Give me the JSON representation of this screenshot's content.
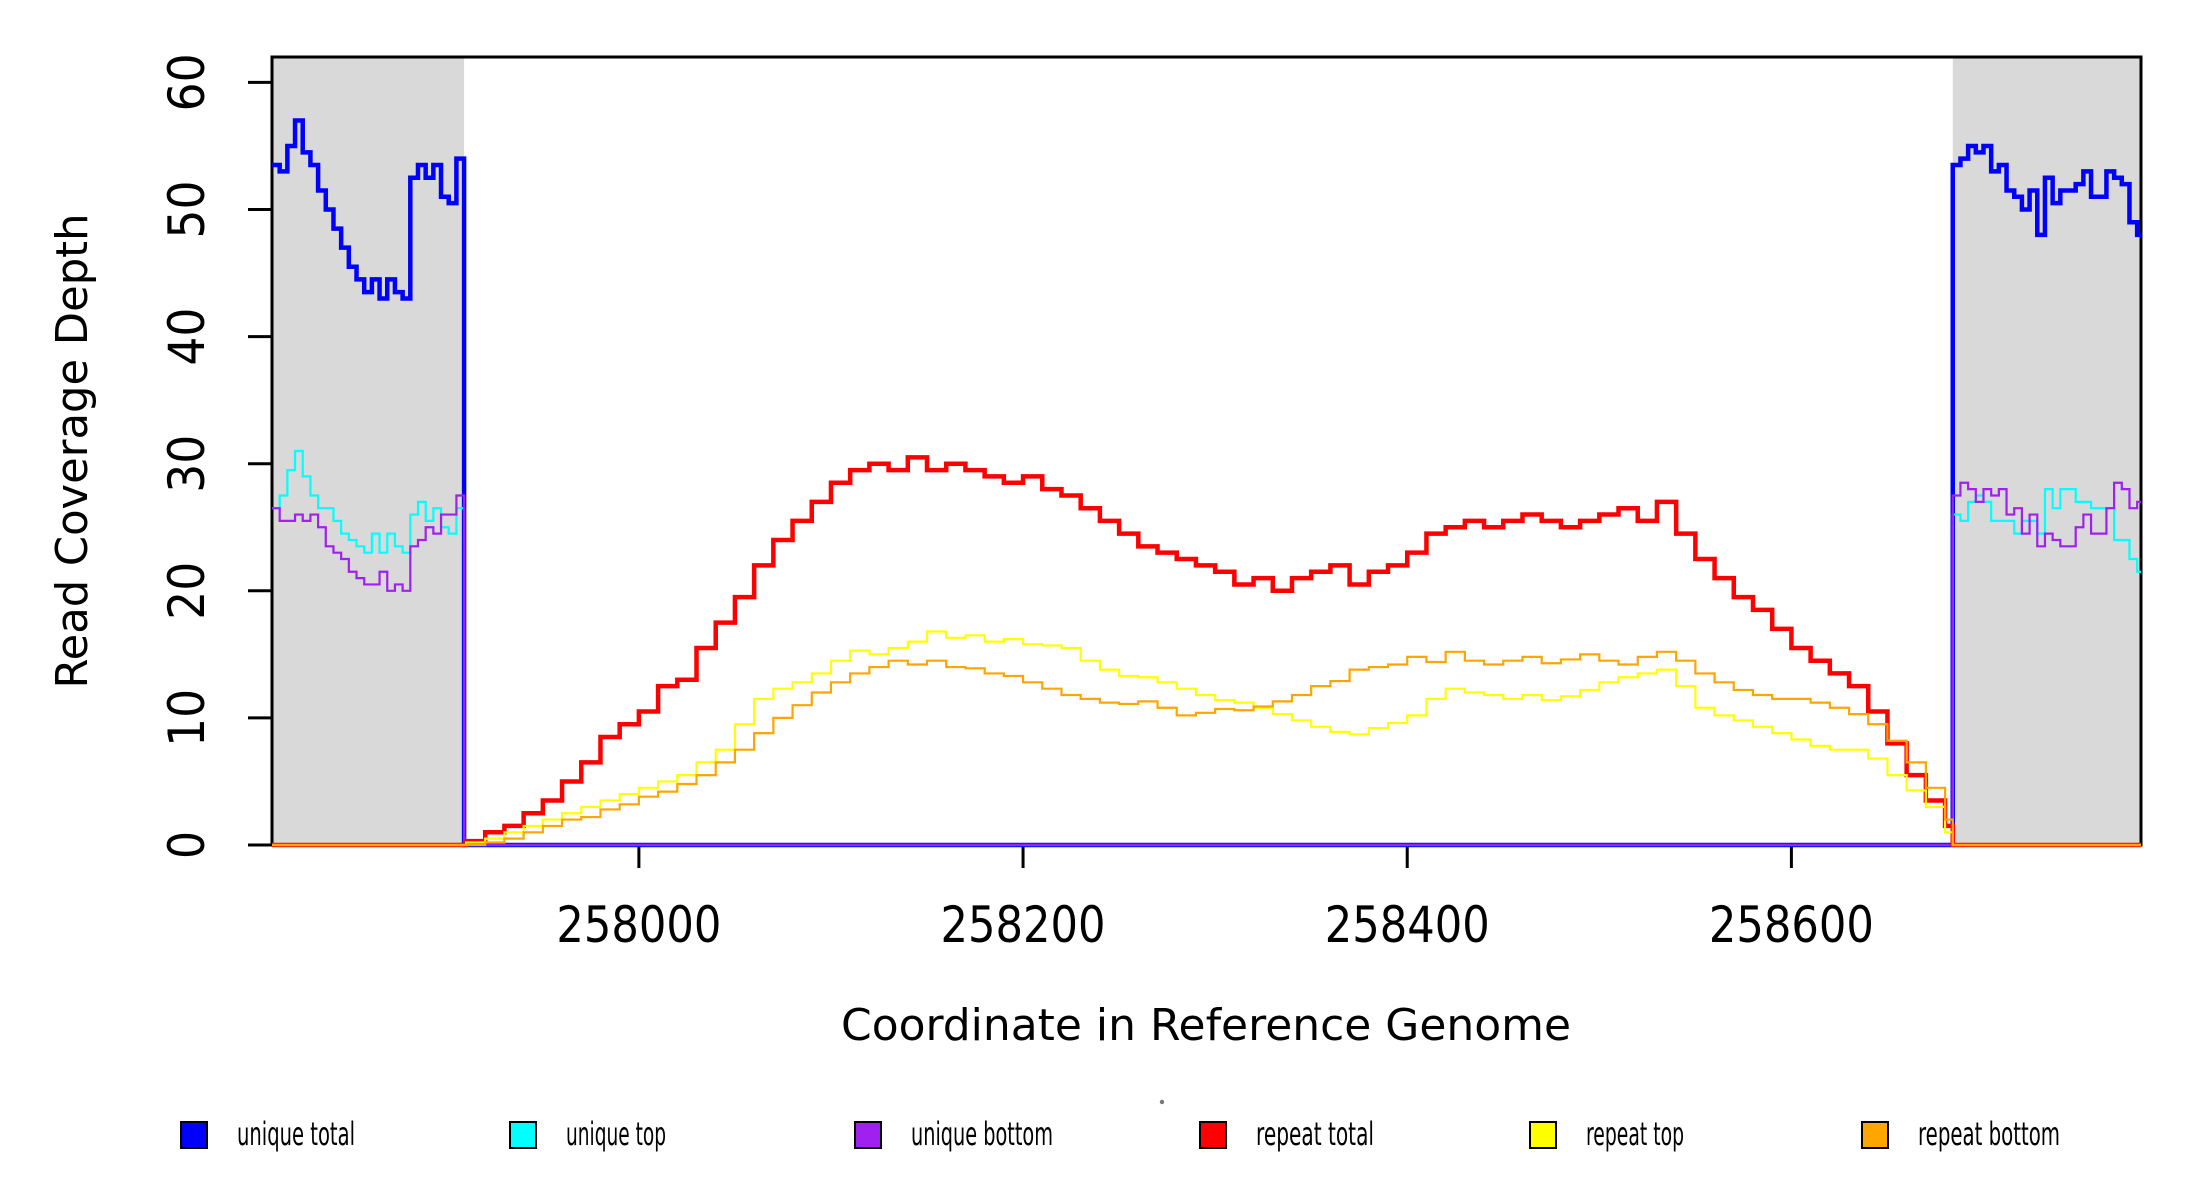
{
  "chart_data": {
    "type": "line",
    "title": "",
    "xlabel": "Coordinate in Reference Genome",
    "ylabel": "Read Coverage Depth",
    "xlim": [
      257809,
      258782
    ],
    "ylim": [
      0,
      62
    ],
    "x_ticks": [
      258000,
      258200,
      258400,
      258600
    ],
    "y_ticks": [
      0,
      10,
      20,
      30,
      40,
      50,
      60
    ],
    "grid": false,
    "legend_position": "bottom",
    "interpolation": "step-after",
    "shaded_regions": [
      {
        "name": "left-flank",
        "from": 257809,
        "to": 257909,
        "color": "#d9d9d9"
      },
      {
        "name": "right-flank",
        "from": 258684,
        "to": 258782,
        "color": "#d9d9d9"
      }
    ],
    "series": [
      {
        "name": "unique total",
        "color": "#0000ff",
        "width": 4.5,
        "segments": [
          {
            "x0": 257809,
            "dx": 4,
            "values": [
              53.5,
              53,
              55,
              57,
              54.5,
              53.5,
              51.5,
              50,
              48.5,
              47,
              45.5,
              44.5,
              43.5,
              44.5,
              43,
              44.5,
              43.5,
              43,
              52.5,
              53.5,
              52.5,
              53.5,
              51,
              50.5,
              54,
              51.5
            ]
          },
          {
            "x0": 257909,
            "dx": 775,
            "values": [
              0,
              0
            ]
          },
          {
            "x0": 258684,
            "dx": 4,
            "values": [
              53.5,
              54,
              55,
              54.5,
              55,
              53,
              53.5,
              51.5,
              51,
              50,
              51.5,
              48,
              52.5,
              50.5,
              51.5,
              51.5,
              52,
              53,
              51,
              51,
              53,
              52.5,
              52,
              49,
              48
            ]
          }
        ]
      },
      {
        "name": "unique top",
        "color": "#00ffff",
        "width": 2.2,
        "segments": [
          {
            "x0": 257809,
            "dx": 4,
            "values": [
              26.5,
              27.5,
              29.5,
              31,
              29,
              27.5,
              26.5,
              26.5,
              25.5,
              24.5,
              24,
              23.5,
              23,
              24.5,
              23,
              24.5,
              23.5,
              23,
              26,
              27,
              25.5,
              26.5,
              25,
              24.5,
              26.5,
              24.5
            ]
          },
          {
            "x0": 257909,
            "dx": 775,
            "values": [
              0,
              0
            ]
          },
          {
            "x0": 258684,
            "dx": 4,
            "values": [
              26,
              25.5,
              27,
              27.5,
              27,
              25.5,
              25.5,
              25.5,
              24.5,
              25.5,
              25.5,
              24.5,
              28,
              26.5,
              28,
              28,
              27,
              27,
              26.5,
              26.5,
              26.5,
              24,
              24,
              22.5,
              21.5
            ]
          }
        ]
      },
      {
        "name": "unique bottom",
        "color": "#a020f0",
        "width": 2.2,
        "segments": [
          {
            "x0": 257809,
            "dx": 4,
            "values": [
              26.5,
              25.5,
              25.5,
              26,
              25.5,
              26,
              25,
              23.5,
              23,
              22.5,
              21.5,
              21,
              20.5,
              20.5,
              21.5,
              20,
              20.5,
              20,
              23.5,
              24,
              25,
              24.5,
              26,
              26,
              27.5,
              27.5
            ]
          },
          {
            "x0": 257909,
            "dx": 775,
            "values": [
              0,
              0
            ]
          },
          {
            "x0": 258684,
            "dx": 4,
            "values": [
              27.5,
              28.5,
              28,
              27,
              28,
              27.5,
              28,
              26,
              26.5,
              24.5,
              26,
              23.5,
              24.5,
              24,
              23.5,
              23.5,
              25,
              26,
              24.5,
              24.5,
              26.5,
              28.5,
              28,
              26.5,
              27
            ]
          }
        ]
      },
      {
        "name": "repeat total",
        "color": "#ff0000",
        "width": 4.5,
        "segments": [
          {
            "x0": 257809,
            "dx": 101,
            "values": [
              0,
              0
            ]
          },
          {
            "x0": 257910,
            "dx": 10,
            "values": [
              0.3,
              1,
              1.5,
              2.5,
              3.5,
              5,
              6.5,
              8.5,
              9.5,
              10.5,
              12.5,
              13,
              15.5,
              17.5,
              19.5,
              22,
              24,
              25.5,
              27,
              28.5,
              29.5,
              30,
              29.5,
              30.5,
              29.5,
              30,
              29.5,
              29,
              28.5,
              29,
              28,
              27.5,
              26.5,
              25.5,
              24.5,
              23.5,
              23,
              22.5,
              22,
              21.5,
              20.5,
              21,
              20,
              21,
              21.5,
              22,
              20.5,
              21.5,
              22,
              23,
              24.5,
              25,
              25.5,
              25,
              25.5,
              26,
              25.5,
              25,
              25.5,
              26,
              26.5,
              25.5,
              27,
              24.5,
              22.5,
              21,
              19.5,
              18.5,
              17,
              15.5,
              14.5,
              13.5,
              12.5,
              10.5,
              8,
              5.5,
              3.5,
              1.5
            ]
          },
          {
            "x0": 258684,
            "dx": 98,
            "values": [
              0,
              0
            ]
          }
        ]
      },
      {
        "name": "repeat top",
        "color": "#ffff00",
        "width": 2.2,
        "segments": [
          {
            "x0": 257809,
            "dx": 101,
            "values": [
              0,
              0
            ]
          },
          {
            "x0": 257910,
            "dx": 10,
            "values": [
              0.2,
              0.5,
              1,
              1.5,
              2,
              2.5,
              3,
              3.5,
              4,
              4.5,
              5,
              5.5,
              6.5,
              7.5,
              9.5,
              11.5,
              12.3,
              12.8,
              13.5,
              14.5,
              15.3,
              15,
              15.5,
              16,
              16.8,
              16.3,
              16.5,
              16,
              16.2,
              15.8,
              15.7,
              15.5,
              14.5,
              13.8,
              13.3,
              13.2,
              12.8,
              12.3,
              11.8,
              11.4,
              11.2,
              10.8,
              10.3,
              9.8,
              9.3,
              8.9,
              8.7,
              9.2,
              9.6,
              10.2,
              11.5,
              12.3,
              12,
              11.8,
              11.5,
              11.8,
              11.4,
              11.7,
              12.2,
              12.8,
              13.2,
              13.5,
              13.8,
              12.5,
              10.8,
              10.2,
              9.8,
              9.3,
              8.8,
              8.3,
              7.8,
              7.5,
              7.5,
              6.8,
              5.5,
              4.3,
              3,
              1
            ]
          },
          {
            "x0": 258684,
            "dx": 98,
            "values": [
              0,
              0
            ]
          }
        ]
      },
      {
        "name": "repeat bottom",
        "color": "#ffa500",
        "width": 2.2,
        "segments": [
          {
            "x0": 257809,
            "dx": 101,
            "values": [
              0,
              0
            ]
          },
          {
            "x0": 257910,
            "dx": 10,
            "values": [
              0,
              0.2,
              0.5,
              1,
              1.5,
              2,
              2.2,
              2.8,
              3.2,
              3.8,
              4.2,
              4.8,
              5.5,
              6.5,
              7.5,
              8.8,
              10,
              11,
              12,
              12.8,
              13.5,
              14,
              14.5,
              14.2,
              14.5,
              14,
              13.9,
              13.5,
              13.3,
              12.8,
              12.3,
              11.8,
              11.5,
              11.2,
              11.1,
              11.3,
              10.8,
              10.2,
              10.4,
              10.7,
              10.6,
              10.9,
              11.3,
              11.8,
              12.5,
              12.9,
              13.8,
              14,
              14.2,
              14.8,
              14.4,
              15.2,
              14.5,
              14.2,
              14.5,
              14.8,
              14.3,
              14.6,
              15,
              14.5,
              14.2,
              14.8,
              15.2,
              14.5,
              13.5,
              12.8,
              12.2,
              11.8,
              11.5,
              11.5,
              11.2,
              10.8,
              10.3,
              9.5,
              8.2,
              6.5,
              4.5,
              2
            ]
          },
          {
            "x0": 258684,
            "dx": 98,
            "values": [
              0,
              0
            ]
          }
        ]
      }
    ],
    "legend": [
      {
        "label": "unique total",
        "color": "#0000ff"
      },
      {
        "label": "unique top",
        "color": "#00ffff"
      },
      {
        "label": "unique bottom",
        "color": "#a020f0"
      },
      {
        "label": "repeat total",
        "color": "#ff0000"
      },
      {
        "label": "repeat top",
        "color": "#ffff00"
      },
      {
        "label": "repeat bottom",
        "color": "#ffa500"
      }
    ]
  },
  "colors": {
    "shade": "#d9d9d9",
    "axis": "#000000",
    "background": "#ffffff"
  }
}
